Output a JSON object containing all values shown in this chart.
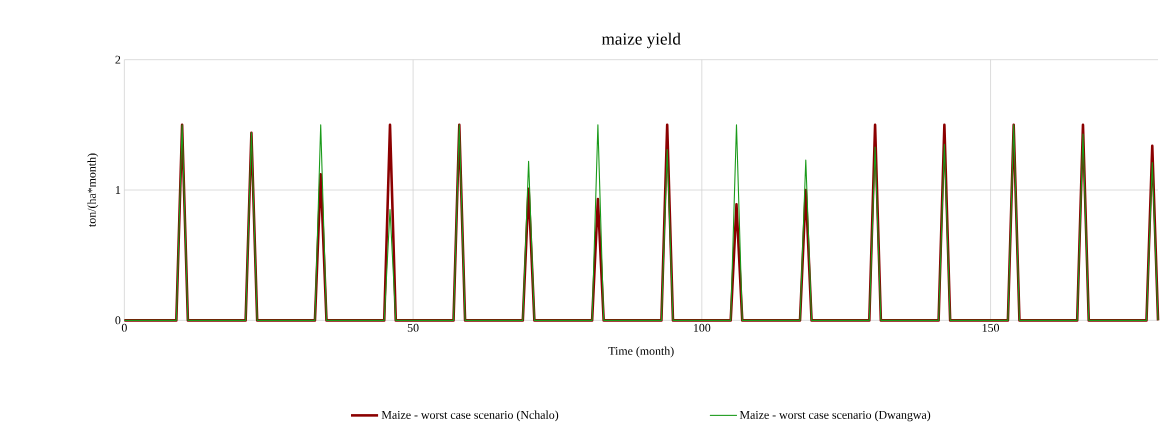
{
  "chart_data": {
    "type": "line",
    "title": "maize yield",
    "xlabel": "Time (month)",
    "ylabel": "ton/(ha*month)",
    "xlim": [
      0,
      179
    ],
    "ylim": [
      0,
      2
    ],
    "xticks": [
      0,
      50,
      100,
      150
    ],
    "yticks": [
      0,
      1,
      2
    ],
    "grid": true,
    "legend": "bottom",
    "line_style": "solid",
    "marker": "none",
    "series": [
      {
        "name": "Maize - worst case scenario (Nchalo)",
        "color": "#8b0000",
        "x": [
          0,
          9,
          10,
          11,
          21,
          22,
          23,
          33,
          34,
          35,
          45,
          46,
          47,
          57,
          58,
          59,
          69,
          70,
          71,
          81,
          82,
          83,
          93,
          94,
          95,
          105,
          106,
          107,
          117,
          118,
          119,
          129,
          130,
          131,
          141,
          142,
          143,
          153,
          154,
          155,
          165,
          166,
          167,
          177,
          178,
          179
        ],
        "values": [
          0,
          0,
          1.5,
          0,
          0,
          1.44,
          0,
          0,
          1.12,
          0,
          0,
          1.5,
          0,
          0,
          1.5,
          0,
          0,
          1.01,
          0,
          0,
          0.93,
          0,
          0,
          1.5,
          0,
          0,
          0.89,
          0,
          0,
          1.0,
          0,
          0,
          1.5,
          0,
          0,
          1.5,
          0,
          0,
          1.5,
          0,
          0,
          1.5,
          0,
          0,
          1.34,
          0
        ]
      },
      {
        "name": "Maize - worst case scenario (Dwangwa)",
        "color": "#1a9a1a",
        "x": [
          0,
          9,
          10,
          11,
          21,
          22,
          23,
          33,
          34,
          35,
          45,
          46,
          47,
          57,
          58,
          59,
          69,
          70,
          71,
          81,
          82,
          83,
          93,
          94,
          95,
          105,
          106,
          107,
          117,
          118,
          119,
          129,
          130,
          131,
          141,
          142,
          143,
          153,
          154,
          155,
          165,
          166,
          167,
          177,
          178,
          179
        ],
        "values": [
          0,
          0,
          1.5,
          0,
          0,
          1.44,
          0,
          0,
          1.5,
          0,
          0,
          0.85,
          0,
          0,
          1.5,
          0,
          0,
          1.22,
          0,
          0,
          1.5,
          0,
          0,
          1.31,
          0,
          0,
          1.5,
          0,
          0,
          1.23,
          0,
          0,
          1.33,
          0,
          0,
          1.35,
          0,
          0,
          1.5,
          0,
          0,
          1.43,
          0,
          0,
          1.21,
          0
        ]
      }
    ]
  }
}
